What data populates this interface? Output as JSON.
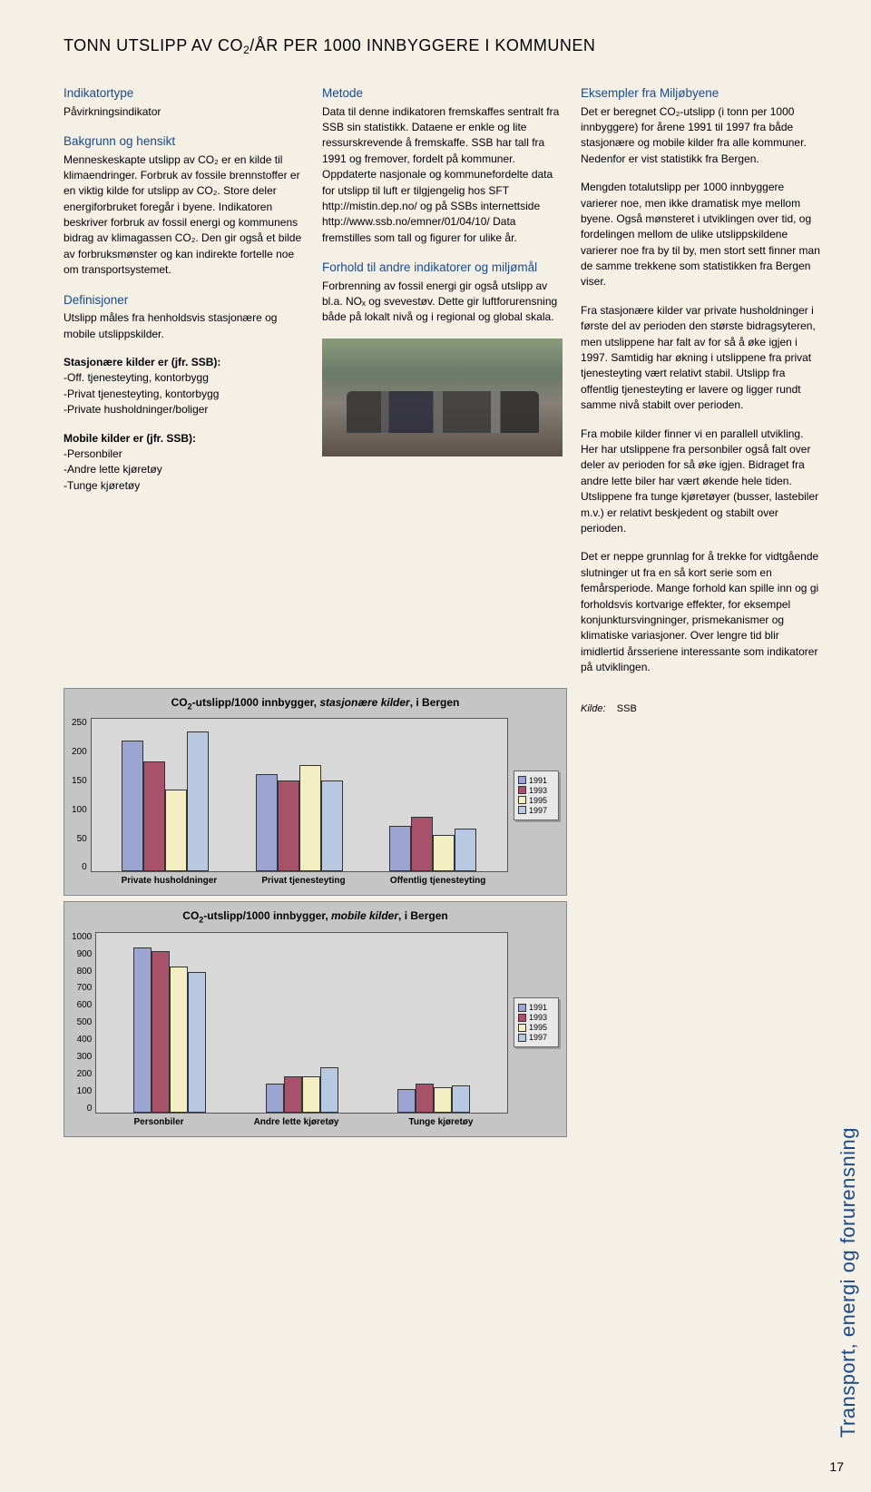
{
  "title_pre": "TONN UTSLIPP AV CO",
  "title_sub": "2",
  "title_post": "/ÅR PER 1000 INNBYGGERE I KOMMUNEN",
  "col1": {
    "h1": "Indikatortype",
    "p1": "Påvirkningsindikator",
    "h2": "Bakgrunn og hensikt",
    "p2": "Menneskeskapte utslipp av CO₂ er en kilde til klimaendringer. Forbruk av fossile brennstoffer er en viktig kilde for utslipp av CO₂. Store deler energiforbruket foregår i byene. Indikatoren beskriver forbruk av fossil energi og kommunens bidrag av klimagassen CO₂. Den gir også et bilde av forbruksmønster og kan indirekte fortelle noe om transportsystemet.",
    "h3": "Definisjoner",
    "p3": "Utslipp måles fra henholdsvis stasjonære og mobile utslippskilder.",
    "p4_lead": "Stasjonære kilder er (jfr. SSB):",
    "p4_body": "-Off. tjenesteyting, kontorbygg\n-Privat tjenesteyting, kontorbygg\n-Private husholdninger/boliger",
    "p5_lead": "Mobile kilder er (jfr. SSB):",
    "p5_body": "-Personbiler\n-Andre lette kjøretøy\n-Tunge kjøretøy"
  },
  "col2": {
    "h1": "Metode",
    "p1": "Data til denne indikatoren fremskaffes sentralt fra SSB sin statistikk. Dataene er enkle og lite ressurskrevende å fremskaffe. SSB har tall fra 1991 og fremover, fordelt på kommuner. Oppdaterte nasjonale og kommunefordelte data for utslipp til luft er tilgjengelig hos SFT http://mistin.dep.no/ og på SSBs internettside http://www.ssb.no/emner/01/04/10/ Data fremstilles som tall og figurer for ulike år.",
    "h2": "Forhold til andre indikatorer og miljømål",
    "p2": "Forbrenning av fossil energi gir også utslipp av bl.a. NOₓ og svevestøv. Dette gir luftforurensning både på lokalt nivå og i regional og global skala."
  },
  "col3": {
    "h1": "Eksempler fra Miljøbyene",
    "p1": "Det er beregnet CO₂-utslipp (i tonn per 1000 innbyggere) for årene 1991 til 1997 fra både stasjonære og mobile kilder fra alle kommuner. Nedenfor er vist statistikk fra Bergen.",
    "p2": "Mengden totalutslipp per 1000 innbyggere varierer noe, men ikke dramatisk mye mellom byene. Også mønsteret i utviklingen over tid, og fordelingen mellom de ulike utslippskildene varierer noe fra by til by, men stort sett finner man de samme trekkene som statistikken fra Bergen viser.",
    "p3": "Fra stasjonære kilder var private husholdninger i første del av perioden den største bidragsyteren, men utslippene har falt av for så å øke igjen i 1997. Samtidig har økning i utslippene fra privat tjenesteyting vært relativt stabil. Utslipp fra offentlig tjenesteyting er lavere og ligger rundt samme nivå stabilt over perioden.",
    "p4": "Fra mobile kilder finner vi en parallell utvikling. Her har utslippene fra personbiler også falt over deler av perioden for så øke igjen. Bidraget fra andre lette biler har vært økende hele tiden. Utslippene fra tunge kjøretøyer (busser, lastebiler m.v.) er relativt beskjedent og stabilt over perioden.",
    "p5": "Det er neppe grunnlag for å trekke for vidtgående slutninger ut fra en så kort serie som en femårsperiode. Mange forhold kan spille inn og gi forholdsvis kortvarige effekter, for eksempel konjunktursvingninger, prismekanismer og klimatiske variasjoner. Over lengre tid blir imidlertid årsseriene interessante som indikatorer på utviklingen.",
    "kilde_label": "Kilde:",
    "kilde_value": "SSB"
  },
  "chart1": {
    "title_pre": "CO",
    "title_sub": "2",
    "title_mid": "-utslipp/1000 innbygger, ",
    "title_emph": "stasjonære kilder",
    "title_post": ", i Bergen",
    "y_ticks": [
      "250",
      "200",
      "150",
      "100",
      "50",
      "0"
    ],
    "y_max": 250,
    "categories": [
      "Private husholdninger",
      "Privat tjenesteyting",
      "Offentlig tjenesteyting"
    ],
    "series": {
      "1991": {
        "color": "#9ca5d1",
        "values": [
          215,
          160,
          75
        ]
      },
      "1993": {
        "color": "#a8516b",
        "values": [
          180,
          150,
          90
        ]
      },
      "1995": {
        "color": "#f2eec2",
        "values": [
          135,
          175,
          60
        ]
      },
      "1997": {
        "color": "#b8c8e0",
        "values": [
          230,
          150,
          70
        ]
      }
    },
    "legend": [
      "1991",
      "1993",
      "1995",
      "1997"
    ]
  },
  "chart2": {
    "title_pre": "CO",
    "title_sub": "2",
    "title_mid": "-utslipp/1000 innbygger, ",
    "title_emph": "mobile kilder",
    "title_post": ", i Bergen",
    "y_ticks": [
      "1000",
      "900",
      "800",
      "700",
      "600",
      "500",
      "400",
      "300",
      "200",
      "100",
      "0"
    ],
    "y_max": 1000,
    "categories": [
      "Personbiler",
      "Andre lette kjøretøy",
      "Tunge kjøretøy"
    ],
    "series": {
      "1991": {
        "color": "#9ca5d1",
        "values": [
          920,
          160,
          130
        ]
      },
      "1993": {
        "color": "#a8516b",
        "values": [
          900,
          200,
          160
        ]
      },
      "1995": {
        "color": "#f2eec2",
        "values": [
          810,
          200,
          140
        ]
      },
      "1997": {
        "color": "#b8c8e0",
        "values": [
          780,
          250,
          150
        ]
      }
    },
    "legend": [
      "1991",
      "1993",
      "1995",
      "1997"
    ]
  },
  "side_tab": "Transport, energi og forurensning",
  "page_number": "17"
}
